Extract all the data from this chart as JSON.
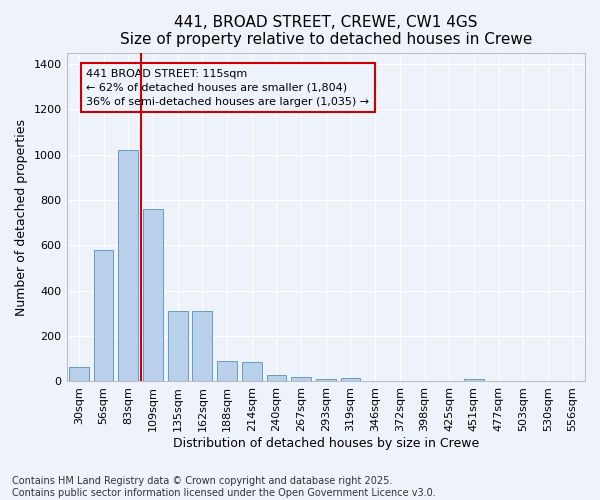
{
  "title": "441, BROAD STREET, CREWE, CW1 4GS",
  "subtitle": "Size of property relative to detached houses in Crewe",
  "xlabel": "Distribution of detached houses by size in Crewe",
  "ylabel": "Number of detached properties",
  "categories": [
    "30sqm",
    "56sqm",
    "83sqm",
    "109sqm",
    "135sqm",
    "162sqm",
    "188sqm",
    "214sqm",
    "240sqm",
    "267sqm",
    "293sqm",
    "319sqm",
    "346sqm",
    "372sqm",
    "398sqm",
    "425sqm",
    "451sqm",
    "477sqm",
    "503sqm",
    "530sqm",
    "556sqm"
  ],
  "values": [
    65,
    580,
    1020,
    760,
    310,
    310,
    90,
    85,
    30,
    20,
    10,
    15,
    0,
    0,
    0,
    0,
    10,
    0,
    0,
    0,
    0
  ],
  "bar_color": "#b8d0ea",
  "bar_edge_color": "#6699cc",
  "background_color": "#eef2fb",
  "grid_color": "#ffffff",
  "annotation_text": "441 BROAD STREET: 115sqm\n← 62% of detached houses are smaller (1,804)\n36% of semi-detached houses are larger (1,035) →",
  "vline_color": "#cc0000",
  "annotation_box_edge": "#cc0000",
  "ylim": [
    0,
    1450
  ],
  "yticks": [
    0,
    200,
    400,
    600,
    800,
    1000,
    1200,
    1400
  ],
  "footer": "Contains HM Land Registry data © Crown copyright and database right 2025.\nContains public sector information licensed under the Open Government Licence v3.0.",
  "title_fontsize": 11,
  "subtitle_fontsize": 10,
  "xlabel_fontsize": 9,
  "ylabel_fontsize": 9,
  "tick_fontsize": 8,
  "annotation_fontsize": 8,
  "footer_fontsize": 7
}
